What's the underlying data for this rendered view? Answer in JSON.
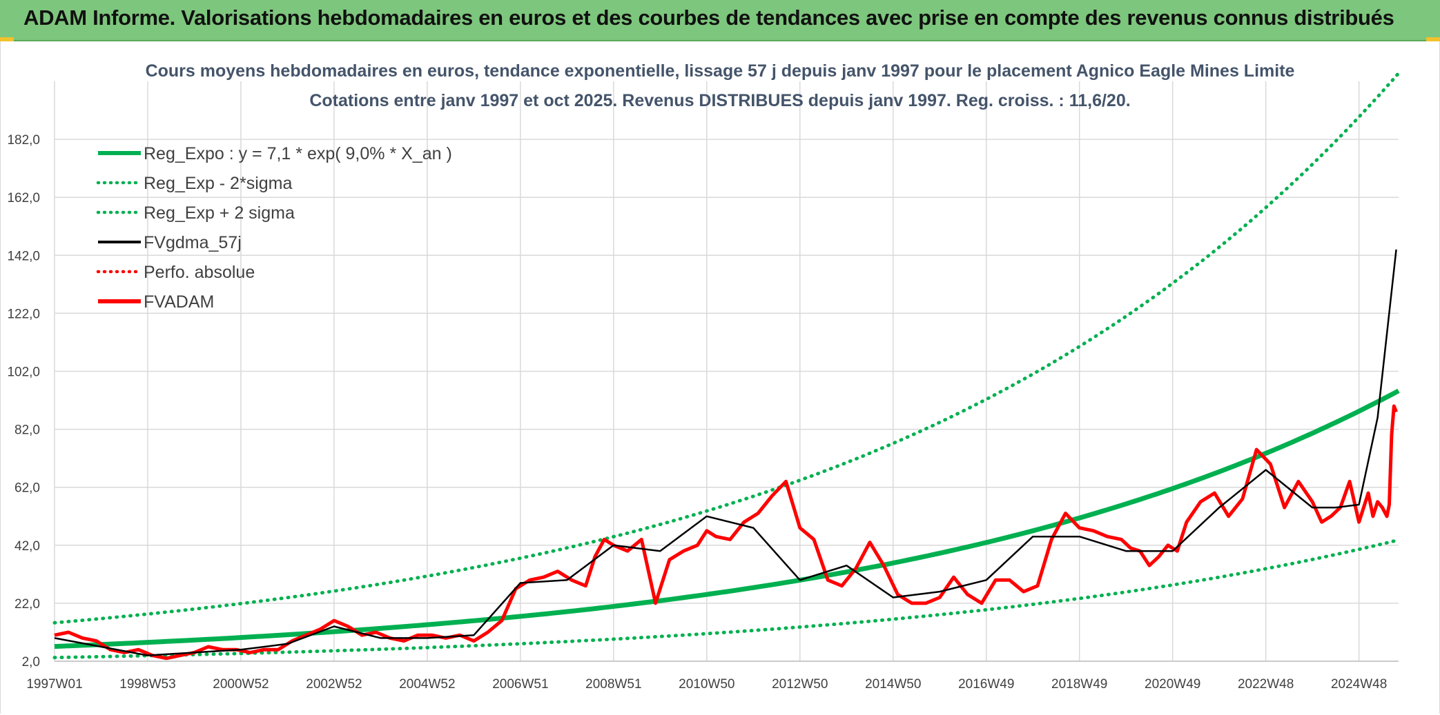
{
  "banner": {
    "title": "ADAM Informe. Valorisations hebdomadaires en euros et des courbes de tendances avec prise en compte des revenus connus distribués"
  },
  "colors": {
    "banner_bg": "#7dc67d",
    "reg_expo": "#00b050",
    "sigma_band": "#00b050",
    "fvgdma": "#000000",
    "perfo": "#ff0000",
    "fvadam": "#ff0000",
    "grid": "#d9d9d9"
  },
  "chart_data": {
    "type": "line",
    "title": "Cours moyens hebdomadaires en euros, tendance exponentielle, lissage 57 j depuis janv 1997 pour le placement Agnico Eagle Mines Limite",
    "subtitle": "Cotations entre janv 1997 et oct 2025. Revenus DISTRIBUES depuis janv 1997. Reg. croiss. : 11,6/20.",
    "xlabel": "",
    "ylabel": "",
    "x_range": [
      1997.0,
      2025.85
    ],
    "ylim": [
      2,
      202
    ],
    "grid": true,
    "legend_position": "top-left",
    "y_ticks": [
      "2,0",
      "22,0",
      "42,0",
      "62,0",
      "82,0",
      "102,0",
      "122,0",
      "142,0",
      "162,0",
      "182,0"
    ],
    "y_tick_values": [
      2,
      22,
      42,
      62,
      82,
      102,
      122,
      142,
      162,
      182
    ],
    "x_ticks": [
      "1997W01",
      "1998W53",
      "2000W52",
      "2002W52",
      "2004W52",
      "2006W51",
      "2008W51",
      "2010W50",
      "2012W50",
      "2014W50",
      "2016W49",
      "2018W49",
      "2020W49",
      "2022W48",
      "2024W48"
    ],
    "x_tick_values": [
      1997.0,
      1999.0,
      2001.0,
      2003.0,
      2005.0,
      2007.0,
      2009.0,
      2011.0,
      2013.0,
      2015.0,
      2017.0,
      2019.0,
      2021.0,
      2023.0,
      2025.0
    ],
    "legend": [
      {
        "label": "Reg_Expo : y = 7,1 * exp( 9,0% *  X_an )",
        "style": "solid-thick",
        "color": "#00b050"
      },
      {
        "label": "Reg_Exp - 2*sigma",
        "style": "dotted",
        "color": "#00b050"
      },
      {
        "label": "Reg_Exp + 2 sigma",
        "style": "dotted",
        "color": "#00b050"
      },
      {
        "label": "FVgdma_57j",
        "style": "solid",
        "color": "#000000"
      },
      {
        "label": "Perfo. absolue",
        "style": "dotted",
        "color": "#ff0000"
      },
      {
        "label": "FVADAM",
        "style": "solid-thick",
        "color": "#ff0000"
      }
    ],
    "regression": {
      "a": 7.1,
      "b": 0.09,
      "lower_factor": 0.46,
      "upper_factor": 2.15
    },
    "series": [
      {
        "name": "FVADAM",
        "x": [
          1997.0,
          1997.3,
          1997.6,
          1997.9,
          1998.2,
          1998.5,
          1998.8,
          1999.1,
          1999.4,
          1999.7,
          2000.0,
          2000.3,
          2000.6,
          2000.9,
          2001.2,
          2001.5,
          2001.8,
          2002.1,
          2002.4,
          2002.7,
          2003.0,
          2003.3,
          2003.6,
          2003.9,
          2004.2,
          2004.5,
          2004.8,
          2005.1,
          2005.4,
          2005.7,
          2006.0,
          2006.3,
          2006.6,
          2006.9,
          2007.2,
          2007.5,
          2007.8,
          2008.1,
          2008.4,
          2008.6,
          2008.8,
          2009.0,
          2009.3,
          2009.6,
          2009.9,
          2010.2,
          2010.5,
          2010.8,
          2011.0,
          2011.2,
          2011.5,
          2011.8,
          2012.1,
          2012.4,
          2012.7,
          2013.0,
          2013.3,
          2013.6,
          2013.9,
          2014.2,
          2014.5,
          2014.8,
          2015.1,
          2015.4,
          2015.7,
          2016.0,
          2016.3,
          2016.6,
          2016.9,
          2017.2,
          2017.5,
          2017.8,
          2018.1,
          2018.4,
          2018.7,
          2019.0,
          2019.3,
          2019.6,
          2019.9,
          2020.1,
          2020.3,
          2020.5,
          2020.7,
          2020.9,
          2021.1,
          2021.3,
          2021.6,
          2021.9,
          2022.2,
          2022.5,
          2022.8,
          2023.1,
          2023.4,
          2023.7,
          2024.0,
          2024.2,
          2024.4,
          2024.6,
          2024.8,
          2025.0,
          2025.1,
          2025.2,
          2025.3,
          2025.4,
          2025.5,
          2025.6,
          2025.65,
          2025.7,
          2025.75,
          2025.8
        ],
        "y": [
          11,
          12,
          10,
          9,
          6,
          5,
          6,
          4,
          3,
          4,
          5,
          7,
          6,
          6,
          5,
          6,
          6,
          9,
          11,
          13,
          16,
          14,
          11,
          12,
          10,
          9,
          11,
          11,
          10,
          11,
          9,
          12,
          16,
          27,
          30,
          31,
          33,
          30,
          28,
          38,
          44,
          42,
          40,
          44,
          22,
          37,
          40,
          42,
          47,
          45,
          44,
          50,
          53,
          59,
          64,
          48,
          44,
          30,
          28,
          34,
          43,
          35,
          25,
          22,
          22,
          24,
          31,
          25,
          22,
          30,
          30,
          26,
          28,
          44,
          53,
          48,
          47,
          45,
          44,
          41,
          40,
          35,
          38,
          42,
          40,
          50,
          57,
          60,
          52,
          58,
          75,
          70,
          55,
          64,
          57,
          50,
          52,
          55,
          64,
          50,
          55,
          60,
          52,
          57,
          55,
          52,
          56,
          80,
          90,
          88
        ]
      },
      {
        "name": "FVgdma_57j",
        "x": [
          1997.0,
          1998.0,
          1999.0,
          2000.0,
          2001.0,
          2002.0,
          2003.0,
          2004.0,
          2005.0,
          2006.0,
          2007.0,
          2008.0,
          2009.0,
          2010.0,
          2011.0,
          2012.0,
          2013.0,
          2014.0,
          2015.0,
          2016.0,
          2017.0,
          2018.0,
          2019.0,
          2020.0,
          2021.0,
          2022.0,
          2023.0,
          2024.0,
          2024.5,
          2025.0,
          2025.4,
          2025.8
        ],
        "y": [
          10,
          7,
          4,
          5,
          6,
          8,
          14,
          10,
          10,
          11,
          29,
          30,
          42,
          40,
          52,
          48,
          30,
          35,
          24,
          26,
          30,
          45,
          45,
          40,
          40,
          55,
          68,
          55,
          55,
          56,
          86,
          144
        ]
      }
    ]
  }
}
